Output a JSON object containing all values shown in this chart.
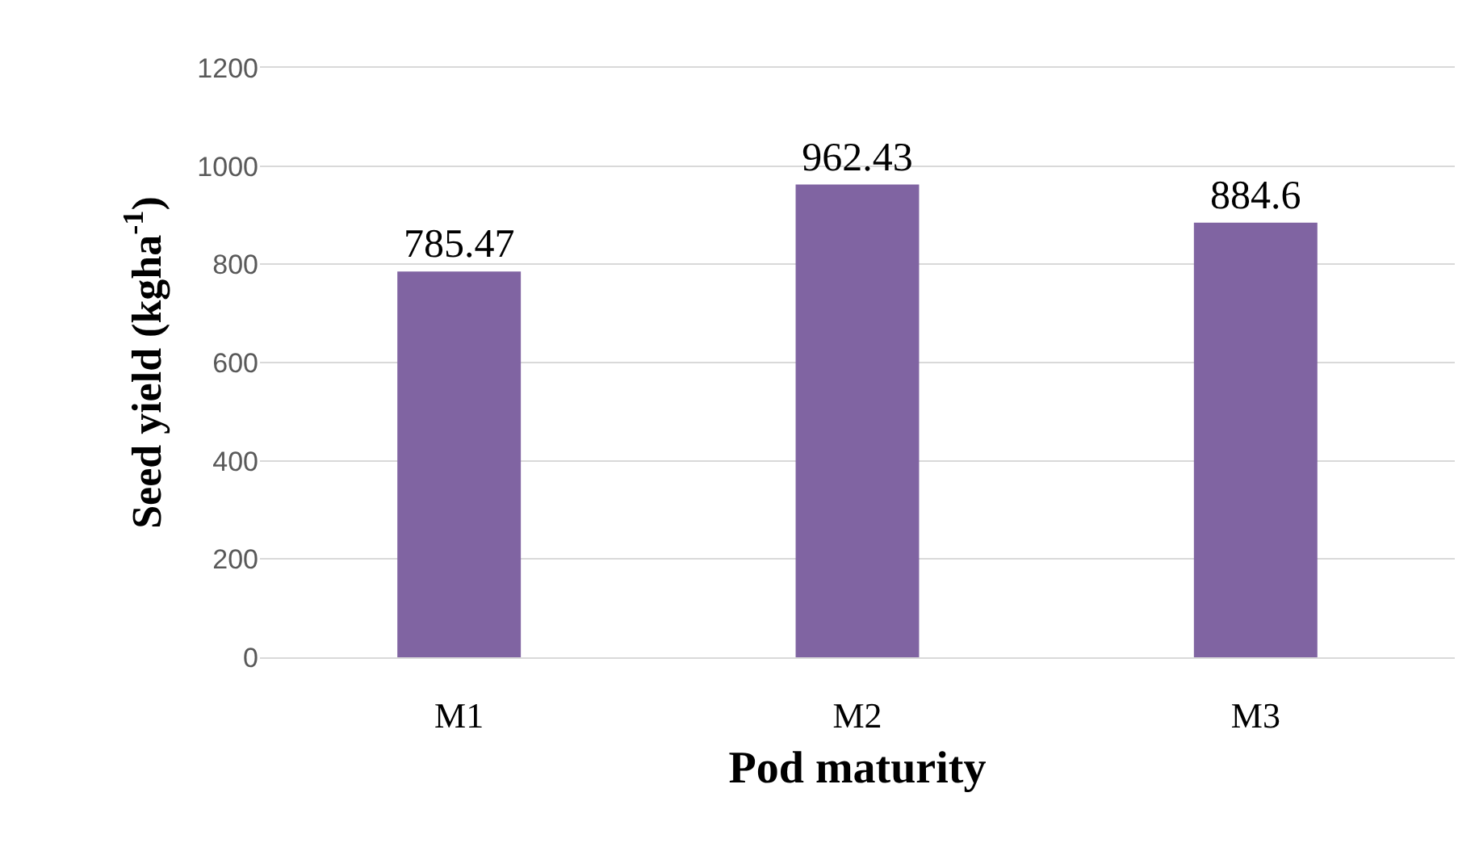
{
  "chart_data": {
    "type": "bar",
    "xlabel": "Pod maturity",
    "ylabel": "Seed yield (kgha$^{-1}$)",
    "categories": [
      "M1",
      "M2",
      "M3"
    ],
    "values": [
      785.47,
      962.43,
      884.6
    ],
    "color": "#8064a2",
    "ylim": [
      0,
      1200
    ],
    "yticks": [
      0,
      200,
      400,
      600,
      800,
      1000,
      1200
    ],
    "grid": "y",
    "data_labels": true
  }
}
